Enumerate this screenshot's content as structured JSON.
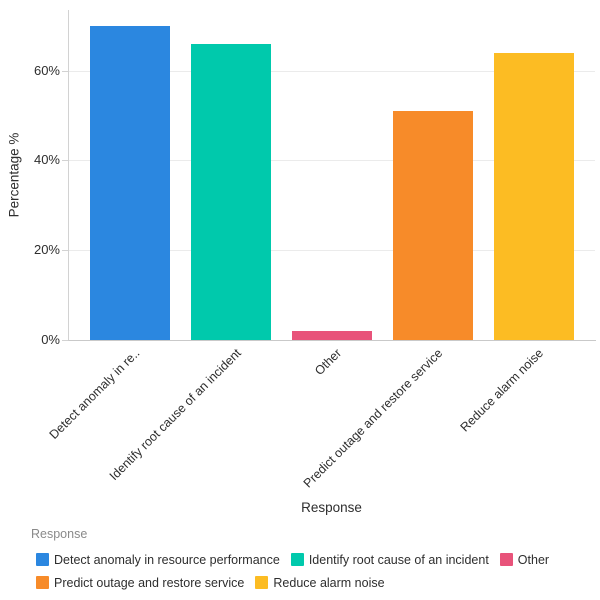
{
  "chart_data": {
    "type": "bar",
    "title": "",
    "xlabel": "Response",
    "ylabel": "Percentage %",
    "unit": "%",
    "categories": [
      "Detect anomaly in resource performance",
      "Identify root cause of an incident",
      "Other",
      "Predict outage and restore service",
      "Reduce alarm noise"
    ],
    "x_tick_labels": [
      "Detect anomaly in re..",
      "Identify root cause of an incident",
      "Other",
      "Predict outage and restore service",
      "Reduce alarm noise"
    ],
    "values": [
      70,
      66,
      2,
      51,
      64
    ],
    "series_colors": [
      "#2b87e0",
      "#00c9ac",
      "#e8537a",
      "#f78b29",
      "#fcbc23"
    ],
    "ylim": [
      0,
      73.5
    ],
    "y_ticks": [
      {
        "value": 0,
        "label": "0%"
      },
      {
        "value": 20,
        "label": "20%"
      },
      {
        "value": 40,
        "label": "40%"
      },
      {
        "value": 60,
        "label": "60%"
      }
    ],
    "grid": "horizontal",
    "legend_position": "bottom-left",
    "legend_title": "Response",
    "legend_rows": [
      [
        0,
        1,
        2
      ],
      [
        3,
        4
      ]
    ]
  }
}
